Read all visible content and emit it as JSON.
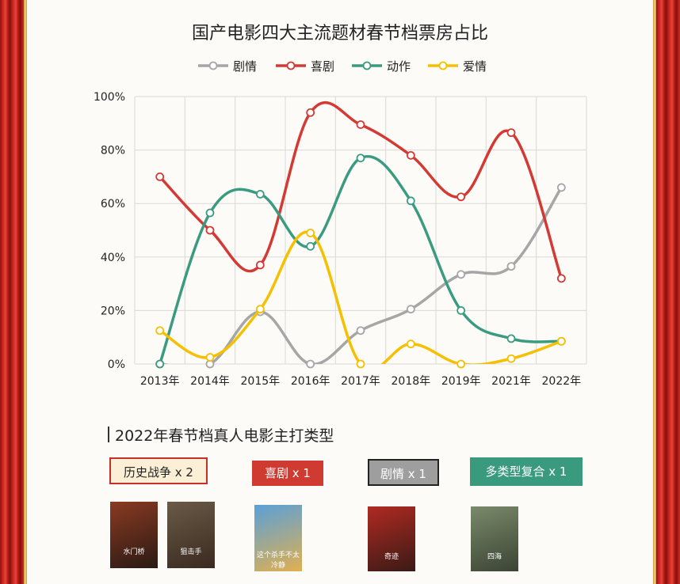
{
  "title": "国产电影四大主流题材春节档票房占比",
  "chart_data": {
    "type": "line",
    "smooth": true,
    "categories": [
      "2013年",
      "2014年",
      "2015年",
      "2016年",
      "2017年",
      "2018年",
      "2019年",
      "2021年",
      "2022年"
    ],
    "ylim": [
      0,
      100
    ],
    "yticks": [
      "0%",
      "20%",
      "40%",
      "60%",
      "80%",
      "100%"
    ],
    "grid": true,
    "legend_position": "top-center",
    "series": [
      {
        "name": "剧情",
        "color": "#a6a6a6",
        "values": [
          0,
          0,
          19.5,
          0,
          12.5,
          20.5,
          33.5,
          36.5,
          66
        ]
      },
      {
        "name": "喜剧",
        "color": "#d23a33",
        "values": [
          70,
          50,
          37,
          94,
          89.5,
          78,
          62.5,
          86.5,
          32
        ]
      },
      {
        "name": "动作",
        "color": "#3b9b80",
        "values": [
          0,
          56.5,
          63.5,
          44,
          77,
          61,
          20,
          9.5,
          8.5
        ]
      },
      {
        "name": "爱情",
        "color": "#f5c000",
        "values": [
          12.5,
          2.5,
          20.5,
          49,
          0,
          7.5,
          0,
          2,
          8.5
        ]
      }
    ]
  },
  "section": {
    "title": "2022年春节档真人电影主打类型",
    "tags": [
      {
        "label": "历史战争 x 2"
      },
      {
        "label": "喜剧 x 1"
      },
      {
        "label": "剧情 x 1"
      },
      {
        "label": "多类型复合 x 1"
      }
    ]
  },
  "posters": [
    {
      "caption": "水门桥",
      "colors": [
        "#8a3a22",
        "#2a1a14"
      ]
    },
    {
      "caption": "狙击手",
      "colors": [
        "#6a5a46",
        "#3a2a20"
      ]
    },
    {
      "caption": "这个杀手不太冷静",
      "colors": [
        "#5aa0d8",
        "#e0b050"
      ]
    },
    {
      "caption": "奇迹",
      "colors": [
        "#b02a22",
        "#3a1a16"
      ]
    },
    {
      "caption": "四海",
      "colors": [
        "#7a8a6a",
        "#3a4434"
      ]
    }
  ]
}
